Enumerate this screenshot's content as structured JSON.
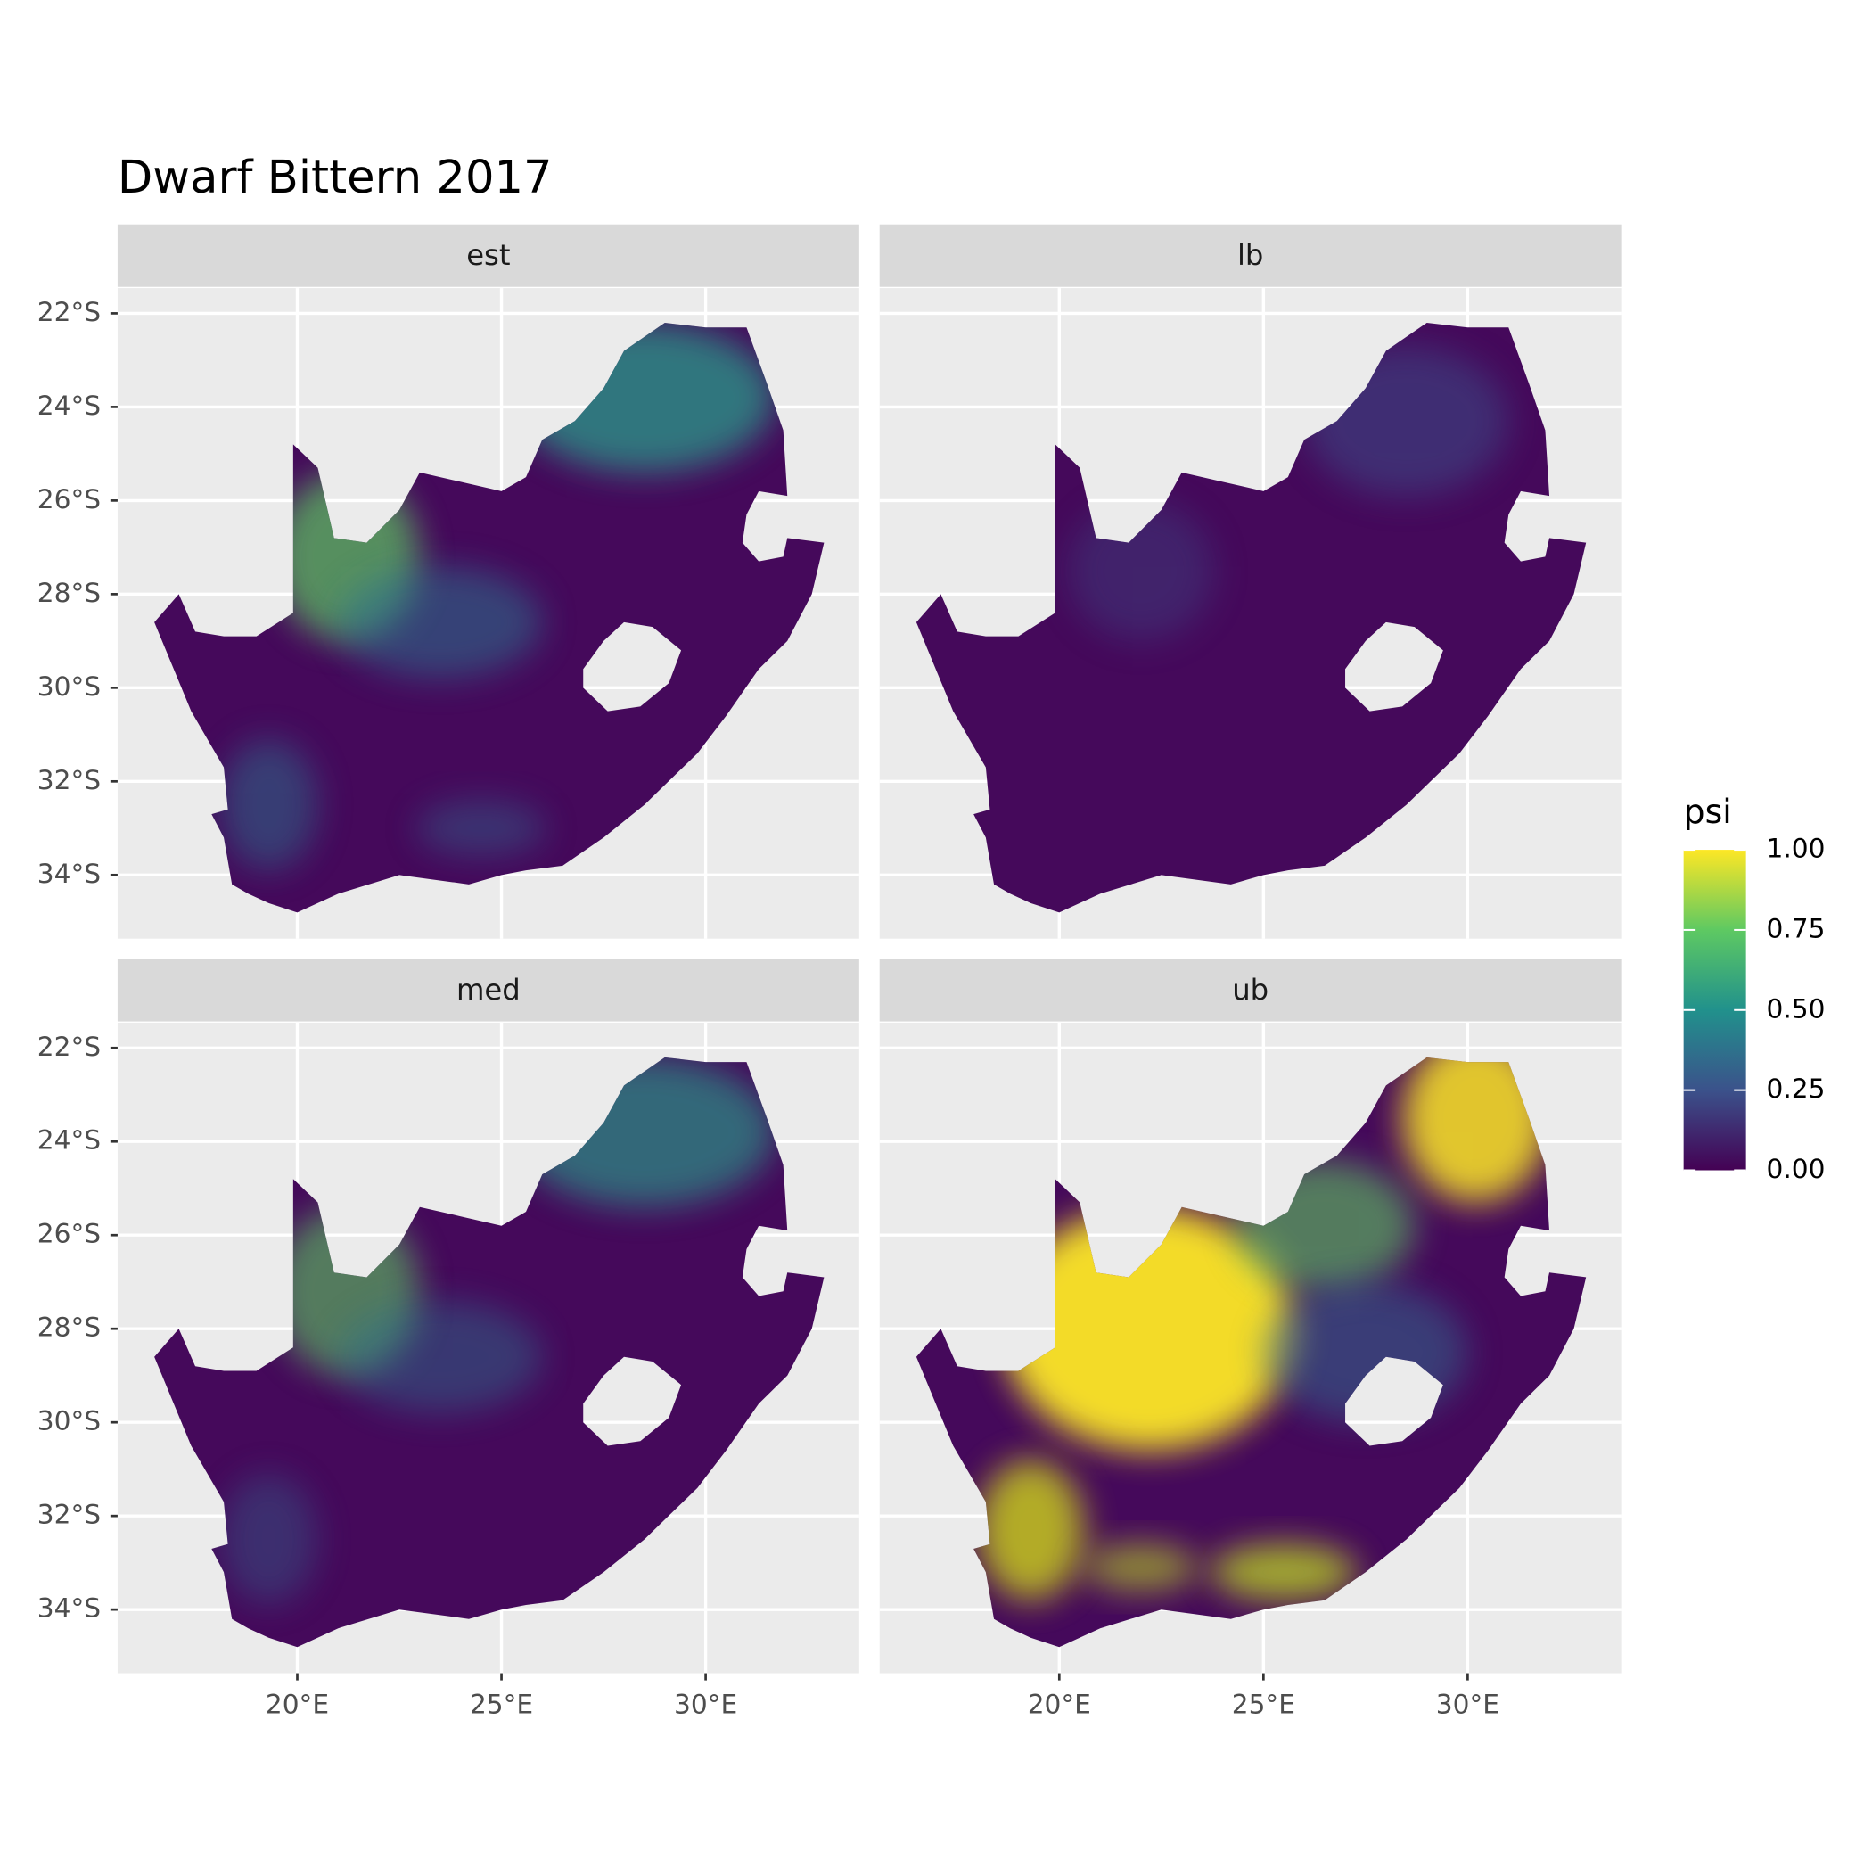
{
  "title": "Dwarf Bittern 2017",
  "panels": [
    "est",
    "lb",
    "med",
    "ub"
  ],
  "xaxis": {
    "lim": [
      15.6,
      33.76
    ],
    "ticks": [
      {
        "value": 20,
        "label": "20°E"
      },
      {
        "value": 25,
        "label": "25°E"
      },
      {
        "value": 30,
        "label": "30°E"
      }
    ]
  },
  "yaxis": {
    "lim": [
      -35.36,
      -21.46
    ],
    "ticks": [
      {
        "value": -22,
        "label": "22°S"
      },
      {
        "value": -24,
        "label": "24°S"
      },
      {
        "value": -26,
        "label": "26°S"
      },
      {
        "value": -28,
        "label": "28°S"
      },
      {
        "value": -30,
        "label": "30°S"
      },
      {
        "value": -32,
        "label": "32°S"
      },
      {
        "value": -34,
        "label": "34°S"
      }
    ]
  },
  "legend": {
    "title": "psi",
    "lim": [
      0,
      1
    ],
    "ticks": [
      {
        "value": 0,
        "label": "0.00"
      },
      {
        "value": 0.25,
        "label": "0.25"
      },
      {
        "value": 0.5,
        "label": "0.50"
      },
      {
        "value": 0.75,
        "label": "0.75"
      },
      {
        "value": 1,
        "label": "1.00"
      }
    ],
    "colors": [
      "#440154",
      "#3b528b",
      "#21918c",
      "#5ec962",
      "#fde725"
    ]
  }
}
